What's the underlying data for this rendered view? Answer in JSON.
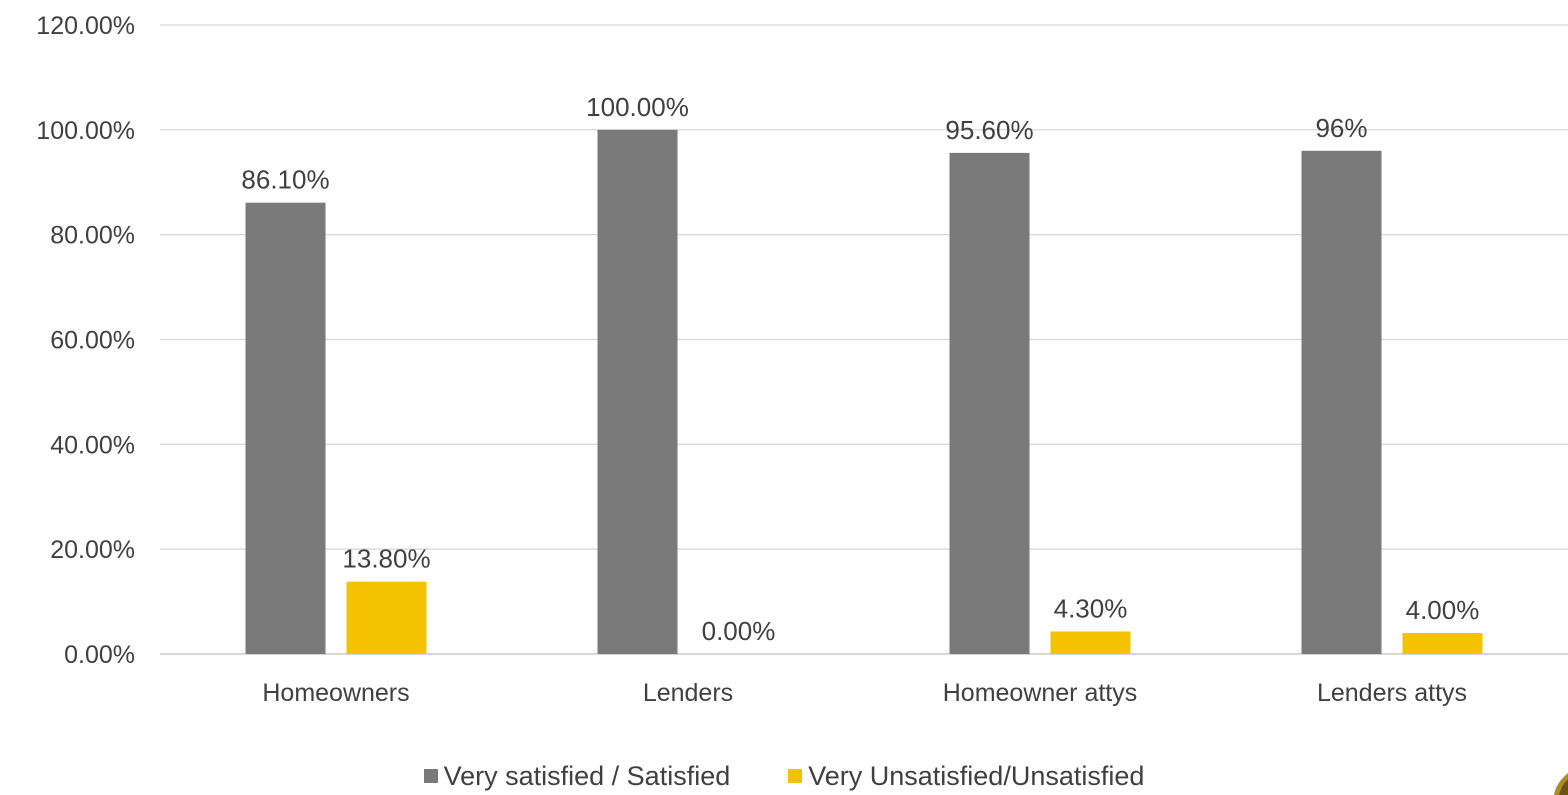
{
  "chart_data": {
    "type": "bar",
    "categories": [
      "Homeowners",
      "Lenders",
      "Homeowner attys",
      "Lenders attys"
    ],
    "series": [
      {
        "name": "Very satisfied / Satisfied",
        "color": "#7a7a7a",
        "values": [
          86.1,
          100.0,
          95.6,
          96.0
        ],
        "labels": [
          "86.10%",
          "100.00%",
          "95.60%",
          "96%"
        ]
      },
      {
        "name": "Very Unsatisfied/Unsatisfied",
        "color": "#f4c200",
        "values": [
          13.8,
          0.0,
          4.3,
          4.0
        ],
        "labels": [
          "13.80%",
          "0.00%",
          "4.30%",
          "4.00%"
        ]
      }
    ],
    "ylim": [
      0,
      120
    ],
    "yticks": [
      "0.00%",
      "20.00%",
      "40.00%",
      "60.00%",
      "80.00%",
      "100.00%",
      "120.00%"
    ],
    "grid": true,
    "legend_position": "bottom"
  }
}
